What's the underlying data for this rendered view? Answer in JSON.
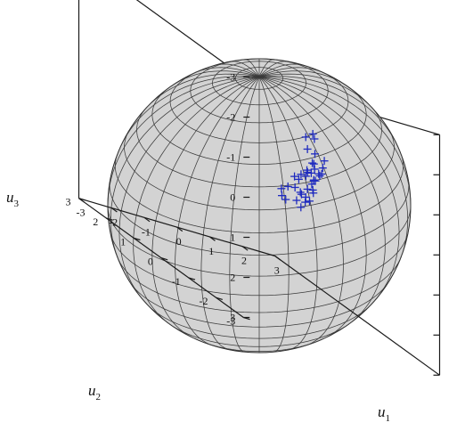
{
  "chart_data": {
    "type": "scatter3d",
    "surface": "sphere",
    "surface_color": "#d3d3d3",
    "marker": "+",
    "marker_color": "#1f2bbf",
    "axes": {
      "u1": {
        "label": "u",
        "subscript": "1",
        "ticks": [
          "-3",
          "-2",
          "-1",
          "0",
          "1",
          "2",
          "3"
        ],
        "lim": [
          -3,
          3
        ]
      },
      "u2": {
        "label": "u",
        "subscript": "2",
        "ticks": [
          "-3",
          "-2",
          "-1",
          "0",
          "1",
          "2",
          "3"
        ],
        "lim": [
          -3,
          3
        ]
      },
      "u3": {
        "label": "u",
        "subscript": "3",
        "ticks": [
          "-3",
          "-2",
          "-1",
          "0",
          "1",
          "2",
          "3"
        ],
        "lim": [
          -3,
          3
        ]
      }
    },
    "points": [
      {
        "u1": 0.3,
        "u2": -1.4,
        "u3": -1.2
      },
      {
        "u1": 0.5,
        "u2": -1.1,
        "u3": -1.4
      },
      {
        "u1": 0.8,
        "u2": -1.0,
        "u3": -1.5
      },
      {
        "u1": 1.1,
        "u2": -0.7,
        "u3": -1.3
      },
      {
        "u1": 0.9,
        "u2": -1.3,
        "u3": -1.0
      },
      {
        "u1": 0.6,
        "u2": -1.6,
        "u3": -0.9
      },
      {
        "u1": 0.4,
        "u2": -1.8,
        "u3": -0.8
      },
      {
        "u1": 0.1,
        "u2": -1.9,
        "u3": -0.9
      },
      {
        "u1": -0.2,
        "u2": -2.0,
        "u3": -0.8
      },
      {
        "u1": -0.4,
        "u2": -2.0,
        "u3": -0.7
      },
      {
        "u1": -0.6,
        "u2": -2.0,
        "u3": -0.6
      },
      {
        "u1": -0.3,
        "u2": -1.8,
        "u3": -0.5
      },
      {
        "u1": 0.0,
        "u2": -1.7,
        "u3": -0.6
      },
      {
        "u1": 0.2,
        "u2": -1.5,
        "u3": -0.7
      },
      {
        "u1": 0.5,
        "u2": -1.3,
        "u3": -0.6
      },
      {
        "u1": 0.7,
        "u2": -1.1,
        "u3": -0.8
      },
      {
        "u1": 1.0,
        "u2": -0.8,
        "u3": -0.7
      },
      {
        "u1": 1.2,
        "u2": -0.6,
        "u3": -0.9
      },
      {
        "u1": 1.4,
        "u2": -0.5,
        "u3": -0.4
      },
      {
        "u1": 1.6,
        "u2": -0.3,
        "u3": -0.3
      },
      {
        "u1": 1.5,
        "u2": -0.2,
        "u3": -0.1
      },
      {
        "u1": 1.3,
        "u2": -0.5,
        "u3": -0.2
      },
      {
        "u1": 1.0,
        "u2": -0.8,
        "u3": -0.3
      },
      {
        "u1": 0.8,
        "u2": -1.0,
        "u3": -0.1
      },
      {
        "u1": 0.6,
        "u2": -1.2,
        "u3": -0.3
      },
      {
        "u1": 0.3,
        "u2": -1.4,
        "u3": -0.2
      },
      {
        "u1": 0.0,
        "u2": -1.5,
        "u3": -0.1
      },
      {
        "u1": -0.2,
        "u2": -1.6,
        "u3": 0.1
      },
      {
        "u1": 0.1,
        "u2": -1.4,
        "u3": 0.3
      },
      {
        "u1": 0.4,
        "u2": -1.2,
        "u3": 0.2
      },
      {
        "u1": 0.7,
        "u2": -1.0,
        "u3": 0.2
      },
      {
        "u1": 0.9,
        "u2": -0.9,
        "u3": 0.0
      },
      {
        "u1": -0.5,
        "u2": -1.9,
        "u3": -0.3
      },
      {
        "u1": -0.8,
        "u2": -2.0,
        "u3": -0.3
      },
      {
        "u1": -1.0,
        "u2": -2.0,
        "u3": -0.2
      },
      {
        "u1": -0.9,
        "u2": -1.9,
        "u3": 0.0
      },
      {
        "u1": -0.7,
        "u2": -1.8,
        "u3": 0.1
      },
      {
        "u1": 0.2,
        "u2": -1.3,
        "u3": 0.0
      },
      {
        "u1": 0.5,
        "u2": -1.1,
        "u3": 0.1
      }
    ]
  }
}
